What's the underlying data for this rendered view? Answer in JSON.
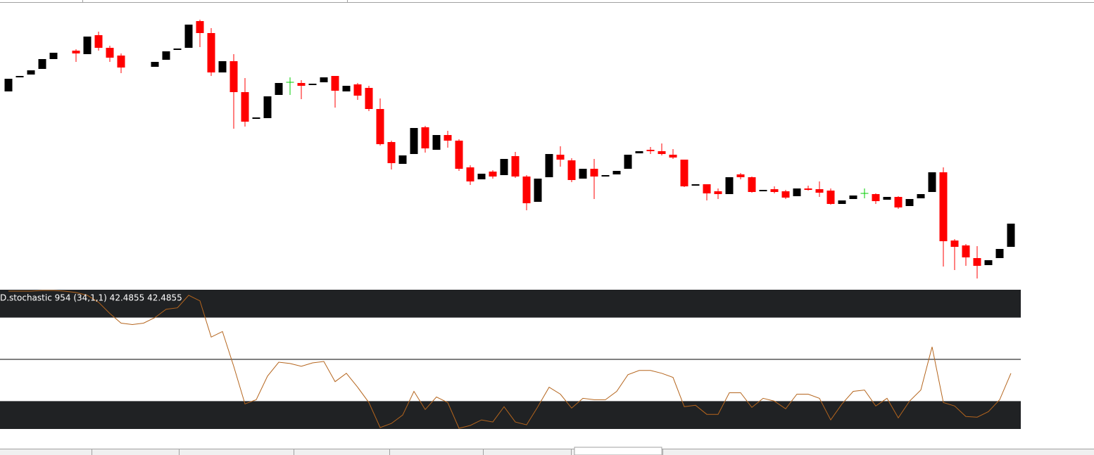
{
  "chart_data": [
    {
      "type": "candlestick",
      "up_color": "#000000",
      "down_color": "#ff0000",
      "doji_color": "#00cc00",
      "ylim": [
        588,
        1000
      ],
      "open": [
        870,
        891,
        894,
        902,
        916,
        null,
        928,
        923,
        950,
        932,
        921,
        null,
        null,
        905,
        915,
        930,
        932,
        970,
        953,
        897,
        913,
        869,
        832,
        832,
        865,
        883,
        882,
        880,
        883,
        892,
        870,
        880,
        875,
        845,
        798,
        767,
        781,
        819,
        787,
        808,
        800,
        762,
        745,
        756,
        751,
        778,
        749,
        713,
        748,
        780,
        772,
        746,
        760,
        750,
        752,
        760,
        782,
        787,
        785,
        780,
        773,
        737,
        738,
        728,
        724,
        752,
        748,
        729,
        731,
        728,
        721,
        732,
        731,
        729,
        710,
        717,
        725,
        724,
        716,
        720,
        707,
        718,
        727,
        755,
        658,
        651,
        633,
        623,
        633,
        649
      ],
      "high": [
        888,
        891,
        900,
        916,
        925,
        null,
        930,
        948,
        955,
        935,
        924,
        null,
        null,
        912,
        927,
        930,
        965,
        972,
        960,
        913,
        923,
        889,
        832,
        863,
        882,
        890,
        886,
        880,
        890,
        892,
        878,
        882,
        878,
        860,
        800,
        779,
        818,
        821,
        808,
        814,
        802,
        765,
        753,
        758,
        774,
        784,
        751,
        746,
        781,
        792,
        775,
        760,
        774,
        750,
        757,
        780,
        785,
        791,
        796,
        788,
        773,
        737,
        738,
        732,
        748,
        754,
        749,
        729,
        735,
        730,
        732,
        736,
        742,
        732,
        715,
        722,
        732,
        725,
        720,
        721,
        717,
        724,
        755,
        762,
        660,
        653,
        650,
        630,
        646,
        682
      ],
      "low": [
        870,
        891,
        894,
        902,
        916,
        null,
        912,
        923,
        928,
        912,
        896,
        null,
        null,
        905,
        915,
        930,
        932,
        933,
        892,
        897,
        817,
        820,
        832,
        832,
        865,
        865,
        859,
        880,
        883,
        847,
        870,
        858,
        842,
        793,
        759,
        767,
        781,
        783,
        787,
        790,
        757,
        737,
        745,
        746,
        751,
        747,
        701,
        713,
        748,
        763,
        741,
        746,
        717,
        750,
        752,
        760,
        782,
        781,
        779,
        774,
        734,
        737,
        715,
        717,
        724,
        745,
        726,
        729,
        725,
        717,
        721,
        729,
        720,
        709,
        710,
        717,
        718,
        710,
        716,
        703,
        707,
        718,
        727,
        621,
        616,
        622,
        604,
        623,
        633,
        649
      ],
      "close": [
        888,
        891,
        900,
        916,
        925,
        null,
        924,
        948,
        932,
        918,
        904,
        null,
        null,
        912,
        927,
        930,
        965,
        953,
        897,
        913,
        869,
        827,
        832,
        863,
        882,
        883,
        878,
        880,
        890,
        871,
        878,
        864,
        845,
        795,
        768,
        779,
        818,
        789,
        808,
        800,
        760,
        742,
        753,
        749,
        774,
        749,
        711,
        746,
        781,
        773,
        744,
        760,
        749,
        750,
        757,
        780,
        785,
        785,
        781,
        776,
        735,
        737,
        725,
        724,
        748,
        748,
        727,
        729,
        727,
        719,
        732,
        730,
        726,
        710,
        715,
        722,
        725,
        714,
        720,
        705,
        717,
        724,
        755,
        657,
        649,
        634,
        622,
        630,
        646,
        682
      ]
    },
    {
      "type": "line",
      "label": "D.stochastic 954 (34,1,1) 42.4855 42.4855",
      "color": "#b5651d",
      "ylim": [
        0,
        100
      ],
      "bands": [
        [
          80,
          100
        ],
        [
          0,
          20
        ]
      ],
      "level": 50,
      "values": [
        99,
        99,
        99,
        99.5,
        99.5,
        99,
        98,
        96,
        91,
        83,
        76,
        75,
        76,
        80,
        86,
        87,
        96,
        92,
        66,
        70,
        45,
        18,
        21,
        38,
        48,
        47,
        45,
        47.5,
        48.5,
        34,
        40,
        30,
        19,
        1,
        4,
        10,
        27,
        14,
        23,
        19,
        0.5,
        2.5,
        6.5,
        5,
        16,
        5,
        3,
        16,
        30,
        25,
        15,
        22,
        21,
        21,
        27,
        39,
        42,
        42,
        40,
        37,
        16,
        17,
        10.5,
        10.5,
        26,
        26,
        15.5,
        22,
        20,
        14.5,
        25,
        25,
        22,
        6.5,
        18,
        27,
        28,
        16.5,
        22,
        8,
        20,
        28,
        59,
        19,
        16.5,
        9,
        8.5,
        12.5,
        21,
        40
      ]
    }
  ]
}
